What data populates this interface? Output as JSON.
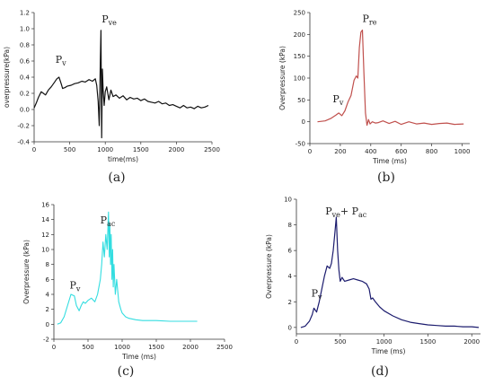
{
  "chart_data": [
    {
      "panel_label": "(a)",
      "type": "line",
      "xlabel": "time(ms)",
      "ylabel": "overpressure(kPa)",
      "xlim": [
        0,
        2500
      ],
      "ylim": [
        -0.4,
        1.2
      ],
      "xticks": [
        0,
        500,
        1000,
        1500,
        2000,
        2500
      ],
      "yticks": [
        -0.4,
        -0.2,
        0.0,
        0.2,
        0.4,
        0.6,
        0.8,
        1.0,
        1.2
      ],
      "color": "#111111",
      "annotations": [
        {
          "main": "P",
          "sub": "v",
          "x": 300,
          "y": 0.58
        },
        {
          "main": "P",
          "sub": "ve",
          "x": 950,
          "y": 1.08
        }
      ],
      "series": [
        {
          "x": [
            0,
            30,
            60,
            100,
            130,
            160,
            200,
            240,
            280,
            320,
            350,
            380,
            400,
            430,
            470,
            520,
            570,
            620,
            670,
            720,
            770,
            820,
            860,
            880,
            900,
            915,
            930,
            940,
            950,
            960,
            970,
            985,
            1000,
            1020,
            1050,
            1080,
            1110,
            1150,
            1200,
            1250,
            1300,
            1350,
            1400,
            1450,
            1500,
            1550,
            1600,
            1650,
            1700,
            1750,
            1800,
            1850,
            1900,
            1950,
            2000,
            2050,
            2100,
            2150,
            2200,
            2250,
            2300,
            2350,
            2400,
            2450
          ],
          "y": [
            0.02,
            0.08,
            0.15,
            0.22,
            0.2,
            0.18,
            0.24,
            0.28,
            0.33,
            0.38,
            0.4,
            0.32,
            0.26,
            0.27,
            0.29,
            0.3,
            0.32,
            0.33,
            0.35,
            0.34,
            0.37,
            0.35,
            0.38,
            0.3,
            0.1,
            -0.2,
            0.6,
            0.98,
            -0.35,
            0.5,
            0.25,
            0.05,
            0.22,
            0.28,
            0.12,
            0.24,
            0.16,
            0.18,
            0.14,
            0.17,
            0.12,
            0.15,
            0.13,
            0.14,
            0.11,
            0.13,
            0.1,
            0.09,
            0.08,
            0.1,
            0.07,
            0.08,
            0.05,
            0.06,
            0.04,
            0.02,
            0.05,
            0.02,
            0.03,
            0.01,
            0.04,
            0.02,
            0.03,
            0.05
          ]
        }
      ]
    },
    {
      "panel_label": "(b)",
      "type": "line",
      "xlabel": "Time (ms)",
      "ylabel": "Overpressure (kPa)",
      "xlim": [
        0,
        1050
      ],
      "ylim": [
        -50,
        250
      ],
      "xticks": [
        0,
        200,
        400,
        600,
        800,
        1000
      ],
      "yticks": [
        -50,
        0,
        50,
        100,
        150,
        200,
        250
      ],
      "color": "#c0504d",
      "annotations": [
        {
          "main": "P",
          "sub": "v",
          "x": 150,
          "y": 45
        },
        {
          "main": "P",
          "sub": "re",
          "x": 345,
          "y": 228
        }
      ],
      "series": [
        {
          "x": [
            50,
            100,
            140,
            170,
            190,
            210,
            230,
            250,
            270,
            290,
            305,
            315,
            325,
            335,
            345,
            355,
            365,
            375,
            385,
            395,
            410,
            430,
            450,
            480,
            520,
            560,
            600,
            650,
            700,
            750,
            800,
            850,
            900,
            950,
            1010
          ],
          "y": [
            0,
            2,
            8,
            15,
            20,
            14,
            25,
            45,
            60,
            95,
            105,
            100,
            170,
            205,
            210,
            110,
            20,
            -8,
            5,
            -5,
            0,
            -3,
            -2,
            2,
            -4,
            1,
            -6,
            0,
            -5,
            -3,
            -6,
            -4,
            -3,
            -6,
            -5
          ]
        }
      ]
    },
    {
      "panel_label": "(c)",
      "type": "line",
      "xlabel": "Time (ms)",
      "ylabel": "Overpressure (kPa)",
      "xlim": [
        0,
        2500
      ],
      "ylim": [
        -2,
        16
      ],
      "xticks": [
        0,
        500,
        1000,
        1500,
        2000,
        2500
      ],
      "yticks": [
        -2,
        0,
        2,
        4,
        6,
        8,
        10,
        12,
        14,
        16
      ],
      "color": "#33dde0",
      "annotations": [
        {
          "main": "P",
          "sub": "v",
          "x": 230,
          "y": 4.8
        },
        {
          "main": "P",
          "sub": "ac",
          "x": 680,
          "y": 13.5
        }
      ],
      "series": [
        {
          "x": [
            50,
            100,
            150,
            200,
            250,
            300,
            330,
            370,
            400,
            430,
            460,
            500,
            550,
            600,
            640,
            680,
            700,
            720,
            740,
            760,
            780,
            800,
            810,
            820,
            830,
            840,
            850,
            860,
            870,
            880,
            900,
            920,
            950,
            980,
            1000,
            1050,
            1100,
            1200,
            1300,
            1500,
            1700,
            1900,
            2100
          ],
          "y": [
            0,
            0.2,
            1.0,
            2.5,
            4.0,
            3.8,
            2.5,
            1.8,
            2.5,
            3.0,
            2.8,
            3.2,
            3.5,
            3.0,
            4.0,
            6.0,
            8.0,
            11.0,
            9.0,
            12.0,
            10.0,
            15.0,
            9.0,
            13.5,
            8.0,
            12.0,
            6.0,
            10.0,
            5.0,
            8.0,
            4.0,
            6.0,
            3.0,
            2.0,
            1.5,
            1.0,
            0.8,
            0.6,
            0.5,
            0.5,
            0.4,
            0.4,
            0.4
          ]
        }
      ]
    },
    {
      "panel_label": "(d)",
      "type": "line",
      "xlabel": "Time (ms)",
      "ylabel": "Overpressure (kPa)",
      "xlim": [
        0,
        2100
      ],
      "ylim": [
        -0.5,
        10
      ],
      "xticks": [
        0,
        500,
        1000,
        1500,
        2000
      ],
      "yticks": [
        0,
        2,
        4,
        6,
        8,
        10
      ],
      "color": "#1c1c6e",
      "annotations": [
        {
          "main": "P",
          "sub": "v",
          "x": 170,
          "y": 2.4
        },
        {
          "main": "P",
          "sub": "ve",
          "plus": "+ P",
          "sub2": "ac",
          "x": 330,
          "y": 8.8
        }
      ],
      "series": [
        {
          "x": [
            50,
            100,
            150,
            180,
            200,
            230,
            260,
            290,
            320,
            350,
            380,
            400,
            420,
            440,
            455,
            470,
            485,
            500,
            520,
            550,
            600,
            650,
            700,
            750,
            800,
            830,
            850,
            870,
            900,
            950,
            1000,
            1100,
            1200,
            1300,
            1400,
            1500,
            1600,
            1700,
            1800,
            1900,
            2000,
            2080
          ],
          "y": [
            0,
            0.1,
            0.5,
            1.0,
            1.5,
            1.2,
            2.0,
            3.0,
            4.0,
            4.8,
            4.6,
            5.0,
            6.0,
            7.5,
            8.6,
            6.0,
            4.5,
            3.6,
            3.9,
            3.6,
            3.7,
            3.8,
            3.7,
            3.6,
            3.4,
            3.0,
            2.2,
            2.3,
            2.0,
            1.6,
            1.3,
            0.9,
            0.6,
            0.4,
            0.3,
            0.2,
            0.15,
            0.1,
            0.1,
            0.05,
            0.05,
            0.0
          ]
        }
      ]
    }
  ]
}
